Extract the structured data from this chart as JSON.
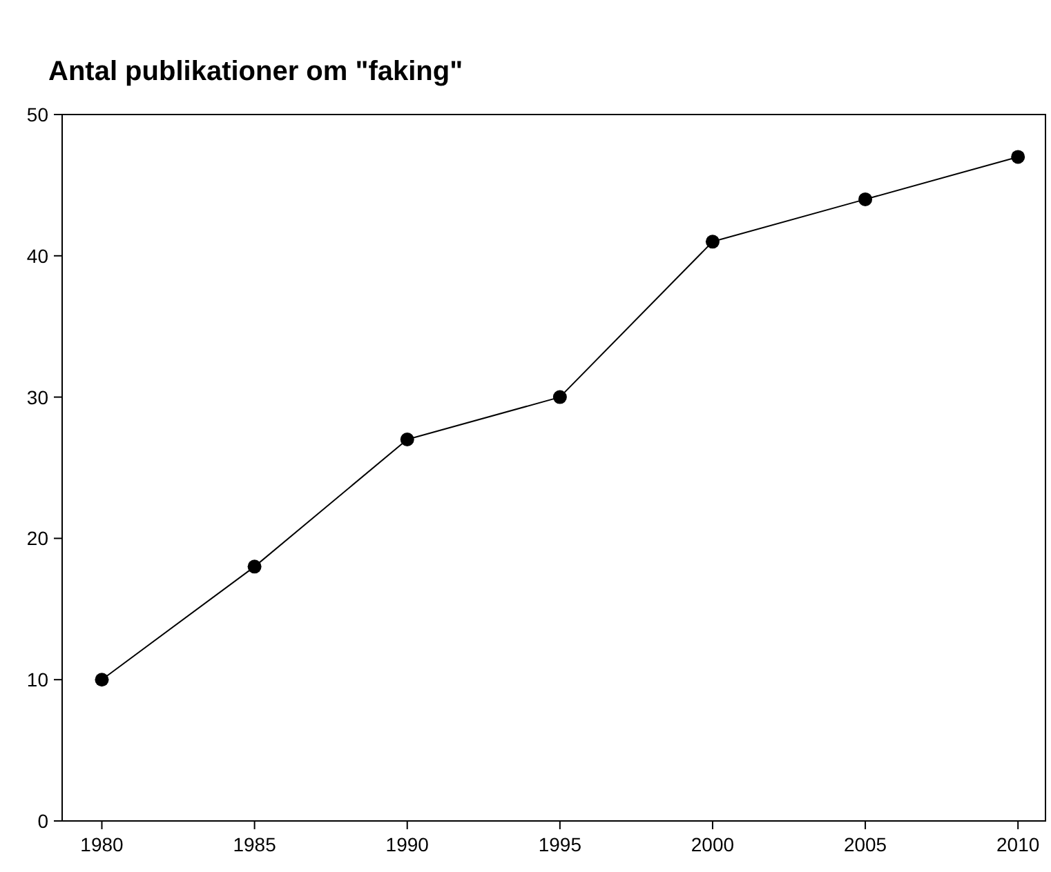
{
  "chart_data": {
    "type": "line",
    "title": "Antal publikationer om \"faking\"",
    "x": [
      1980,
      1985,
      1990,
      1995,
      2000,
      2005,
      2010
    ],
    "series": [
      {
        "color": "#000000",
        "values": [
          10,
          18,
          27,
          30,
          41,
          44,
          47
        ]
      }
    ],
    "xlim": [
      1978.7,
      2010.9
    ],
    "xticks": [
      1980,
      1985,
      1990,
      1995,
      2000,
      2005,
      2010
    ],
    "ylim": [
      0,
      50
    ],
    "yticks": [
      0,
      10,
      20,
      30,
      40,
      50
    ],
    "grid": false,
    "marker": "circle",
    "line_style": "solid"
  }
}
